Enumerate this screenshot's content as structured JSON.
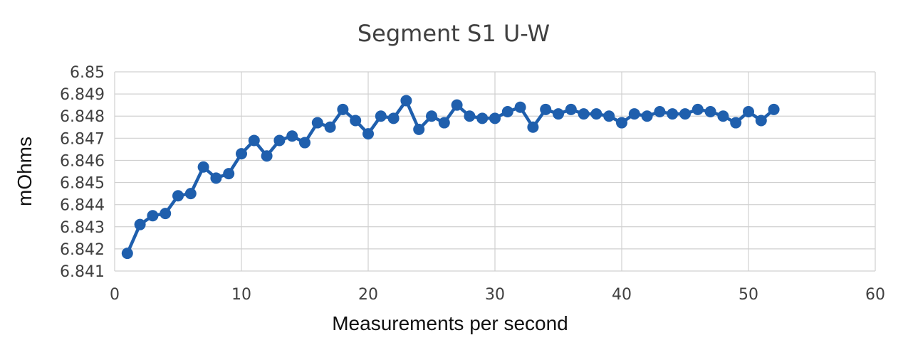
{
  "chart_data": {
    "type": "line",
    "title": "Segment S1 U-W",
    "xlabel": "Measurements per second",
    "ylabel": "mOhms",
    "xlim": [
      0,
      60
    ],
    "ylim": [
      6.841,
      6.85
    ],
    "x_ticks": [
      0,
      10,
      20,
      30,
      40,
      50,
      60
    ],
    "y_ticks": [
      6.841,
      6.842,
      6.843,
      6.844,
      6.845,
      6.846,
      6.847,
      6.848,
      6.849,
      6.85
    ],
    "x_tick_labels": [
      "0",
      "10",
      "20",
      "30",
      "40",
      "50",
      "60"
    ],
    "y_tick_labels": [
      "6.841",
      "6.842",
      "6.843",
      "6.844",
      "6.845",
      "6.846",
      "6.847",
      "6.848",
      "6.849",
      "6.85"
    ],
    "grid": true,
    "legend": "none",
    "series": [
      {
        "color": "#1f5fad",
        "marker": "circle",
        "x": [
          1,
          2,
          3,
          4,
          5,
          6,
          7,
          8,
          9,
          10,
          11,
          12,
          13,
          14,
          15,
          16,
          17,
          18,
          19,
          20,
          21,
          22,
          23,
          24,
          25,
          26,
          27,
          28,
          29,
          30,
          31,
          32,
          33,
          34,
          35,
          36,
          37,
          38,
          39,
          40,
          41,
          42,
          43,
          44,
          45,
          46,
          47,
          48,
          49,
          50,
          51,
          52
        ],
        "y": [
          6.8418,
          6.8431,
          6.8435,
          6.8436,
          6.8444,
          6.8445,
          6.8457,
          6.8452,
          6.8454,
          6.8463,
          6.8469,
          6.8462,
          6.8469,
          6.8471,
          6.8468,
          6.8477,
          6.8475,
          6.8483,
          6.8478,
          6.8472,
          6.848,
          6.8479,
          6.8487,
          6.8474,
          6.848,
          6.8477,
          6.8485,
          6.848,
          6.8479,
          6.8479,
          6.8482,
          6.8484,
          6.8475,
          6.8483,
          6.8481,
          6.8483,
          6.8481,
          6.8481,
          6.848,
          6.8477,
          6.8481,
          6.848,
          6.8482,
          6.8481,
          6.8481,
          6.8483,
          6.8482,
          6.848,
          6.8477,
          6.8482,
          6.8478,
          6.8483
        ]
      }
    ]
  }
}
